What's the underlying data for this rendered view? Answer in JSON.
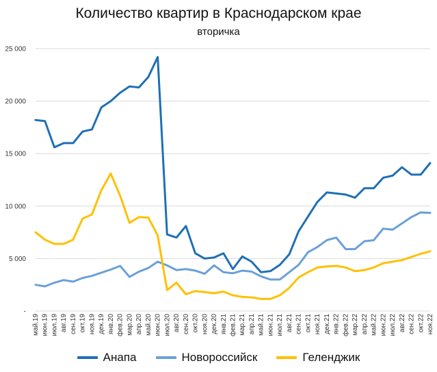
{
  "chart_data": {
    "type": "line",
    "title": "Количество квартир в Краснодарском крае",
    "subtitle": "вторичка",
    "xlabel": "",
    "ylabel": "",
    "ylim": [
      0,
      25000
    ],
    "yticks": [
      {
        "value": 0,
        "label": "-"
      },
      {
        "value": 5000,
        "label": "5 000"
      },
      {
        "value": 10000,
        "label": "10 000"
      },
      {
        "value": 15000,
        "label": "15 000"
      },
      {
        "value": 20000,
        "label": "20 000"
      },
      {
        "value": 25000,
        "label": "25 000"
      }
    ],
    "grid": true,
    "legend_position": "bottom",
    "categories": [
      "май.19",
      "июн.19",
      "июл.19",
      "авг.19",
      "сен.19",
      "окт.19",
      "ноя.19",
      "дек.19",
      "янв.20",
      "фев.20",
      "мар.20",
      "апр.20",
      "май.20",
      "июн.20",
      "июл.20",
      "авг.20",
      "сен.20",
      "окт.20",
      "ноя.20",
      "дек.20",
      "янв.21",
      "фев.21",
      "мар.21",
      "апр.21",
      "май.21",
      "июн.21",
      "июл.21",
      "авг.21",
      "сен.21",
      "окт.21",
      "ноя.21",
      "дек.21",
      "янв.22",
      "фев.22",
      "мар.22",
      "апр.22",
      "май.22",
      "июн.22",
      "июл.22",
      "авг.22",
      "сен.22",
      "окт.22",
      "ноя.22"
    ],
    "series": [
      {
        "name": "Анапа",
        "color": "#1f6fb5",
        "values": [
          18200,
          18100,
          15600,
          16000,
          16000,
          17100,
          17300,
          19400,
          20000,
          20800,
          21400,
          21300,
          22300,
          24200,
          7300,
          7000,
          8100,
          5500,
          5000,
          5100,
          5500,
          4000,
          5200,
          4700,
          3700,
          3800,
          4400,
          5400,
          7600,
          9000,
          10400,
          11300,
          11200,
          11100,
          10800,
          11700,
          11700,
          12700,
          12900,
          13700,
          13000,
          13000,
          14100
        ]
      },
      {
        "name": "Новороссийск",
        "color": "#6aa0d8",
        "values": [
          2500,
          2350,
          2700,
          2950,
          2800,
          3150,
          3350,
          3650,
          3950,
          4300,
          3250,
          3750,
          4100,
          4700,
          4350,
          3900,
          4000,
          3850,
          3550,
          4350,
          3700,
          3600,
          3850,
          3750,
          3300,
          3000,
          3000,
          3700,
          4400,
          5600,
          6100,
          6750,
          7000,
          5900,
          5900,
          6650,
          6750,
          7850,
          7750,
          8350,
          8950,
          9400,
          9350
        ]
      },
      {
        "name": "Геленджик",
        "color": "#ffc000",
        "values": [
          7500,
          6800,
          6400,
          6400,
          6800,
          8800,
          9200,
          11500,
          13100,
          11000,
          8400,
          8950,
          8900,
          7200,
          2000,
          2700,
          1600,
          1900,
          1800,
          1700,
          1850,
          1500,
          1350,
          1300,
          1150,
          1150,
          1500,
          2200,
          3200,
          3700,
          4150,
          4250,
          4300,
          4150,
          3800,
          3900,
          4150,
          4550,
          4700,
          4850,
          5150,
          5450,
          5700
        ]
      }
    ]
  }
}
